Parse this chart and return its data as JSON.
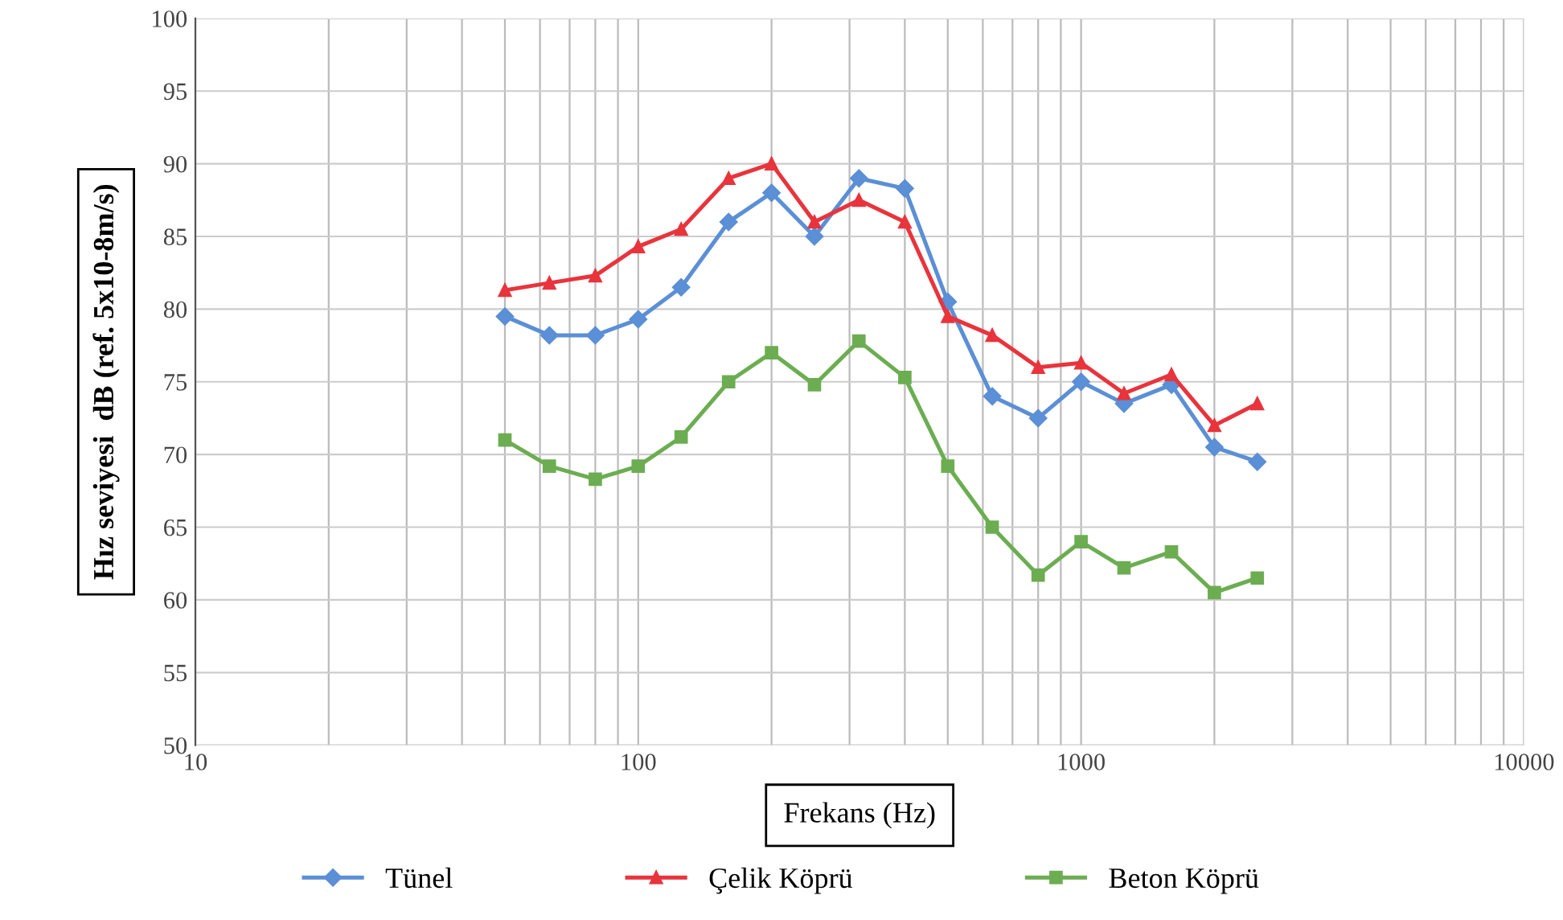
{
  "chart_data": {
    "type": "line",
    "xlabel": "Frekans (Hz)",
    "ylabel": "Hız seviyesi  dB (ref. 5x10-8m/s)",
    "x": [
      50,
      63,
      80,
      100,
      125,
      160,
      200,
      250,
      315,
      400,
      500,
      630,
      800,
      1000,
      1250,
      1600,
      2000,
      2500
    ],
    "series": [
      {
        "name": "Tünel",
        "color": "#5b8fd6",
        "marker": "diamond",
        "values": [
          79.5,
          78.2,
          78.2,
          79.3,
          81.5,
          86,
          88,
          85,
          89,
          88.3,
          80.5,
          74,
          72.5,
          75,
          73.5,
          74.8,
          70.5,
          69.5
        ]
      },
      {
        "name": "Çelik Köprü",
        "color": "#e8343c",
        "marker": "triangle",
        "values": [
          81.3,
          81.8,
          82.3,
          84.3,
          85.5,
          89,
          90,
          86,
          87.5,
          86,
          79.5,
          78.2,
          76,
          76.3,
          74.2,
          75.5,
          72,
          73.5
        ]
      },
      {
        "name": "Beton Köprü",
        "color": "#6cad52",
        "marker": "square",
        "values": [
          71,
          69.2,
          68.3,
          69.2,
          71.2,
          75,
          77,
          74.8,
          77.8,
          75.3,
          69.2,
          65,
          61.7,
          64,
          62.2,
          63.3,
          60.5,
          61.5
        ]
      }
    ],
    "log": "x",
    "xlim": [
      10,
      10000
    ],
    "xticks": [
      10,
      100,
      1000,
      10000
    ],
    "ylim": [
      50,
      100
    ],
    "yticks": [
      50,
      55,
      60,
      65,
      70,
      75,
      80,
      85,
      90,
      95,
      100
    ],
    "grid": true,
    "legend": "bottom",
    "line_style": "solid"
  }
}
